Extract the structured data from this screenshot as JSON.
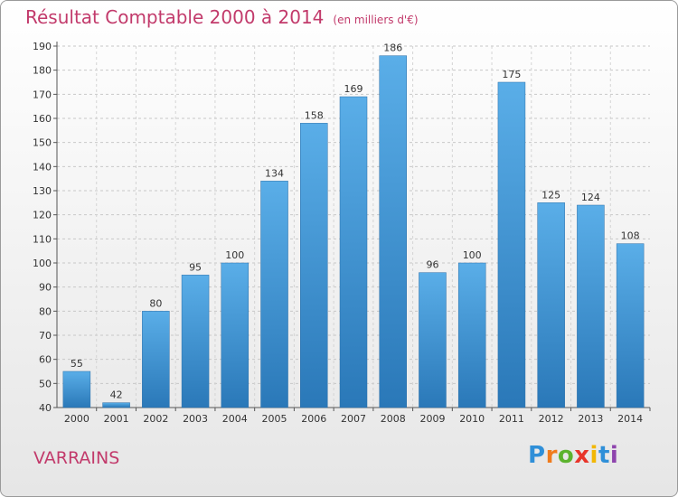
{
  "header": {
    "title": "Résultat Comptable 2000 à 2014",
    "subtitle": "(en milliers d'€)"
  },
  "footer": {
    "place": "VARRAINS"
  },
  "logo": {
    "letters": [
      "P",
      "r",
      "o",
      "x",
      "i",
      "t",
      "i"
    ],
    "colors": [
      "#2f8fd8",
      "#f07b1c",
      "#5cb32e",
      "#e8352a",
      "#f2b705",
      "#2f8fd8",
      "#8e44ad"
    ]
  },
  "colors": {
    "bar_top": "#5aaee8",
    "bar_bottom": "#2a78b8",
    "text": "#333333",
    "title": "#c23a6b"
  },
  "chart_data": {
    "type": "bar",
    "categories": [
      "2000",
      "2001",
      "2002",
      "2003",
      "2004",
      "2005",
      "2006",
      "2007",
      "2008",
      "2009",
      "2010",
      "2011",
      "2012",
      "2013",
      "2014"
    ],
    "values": [
      55,
      42,
      80,
      95,
      100,
      134,
      158,
      169,
      186,
      96,
      100,
      175,
      125,
      124,
      108
    ],
    "ylim": [
      40,
      190
    ],
    "yticks": [
      40,
      50,
      60,
      70,
      80,
      90,
      100,
      110,
      120,
      130,
      140,
      150,
      160,
      170,
      180,
      190
    ],
    "grid": true,
    "data_labels": true
  }
}
